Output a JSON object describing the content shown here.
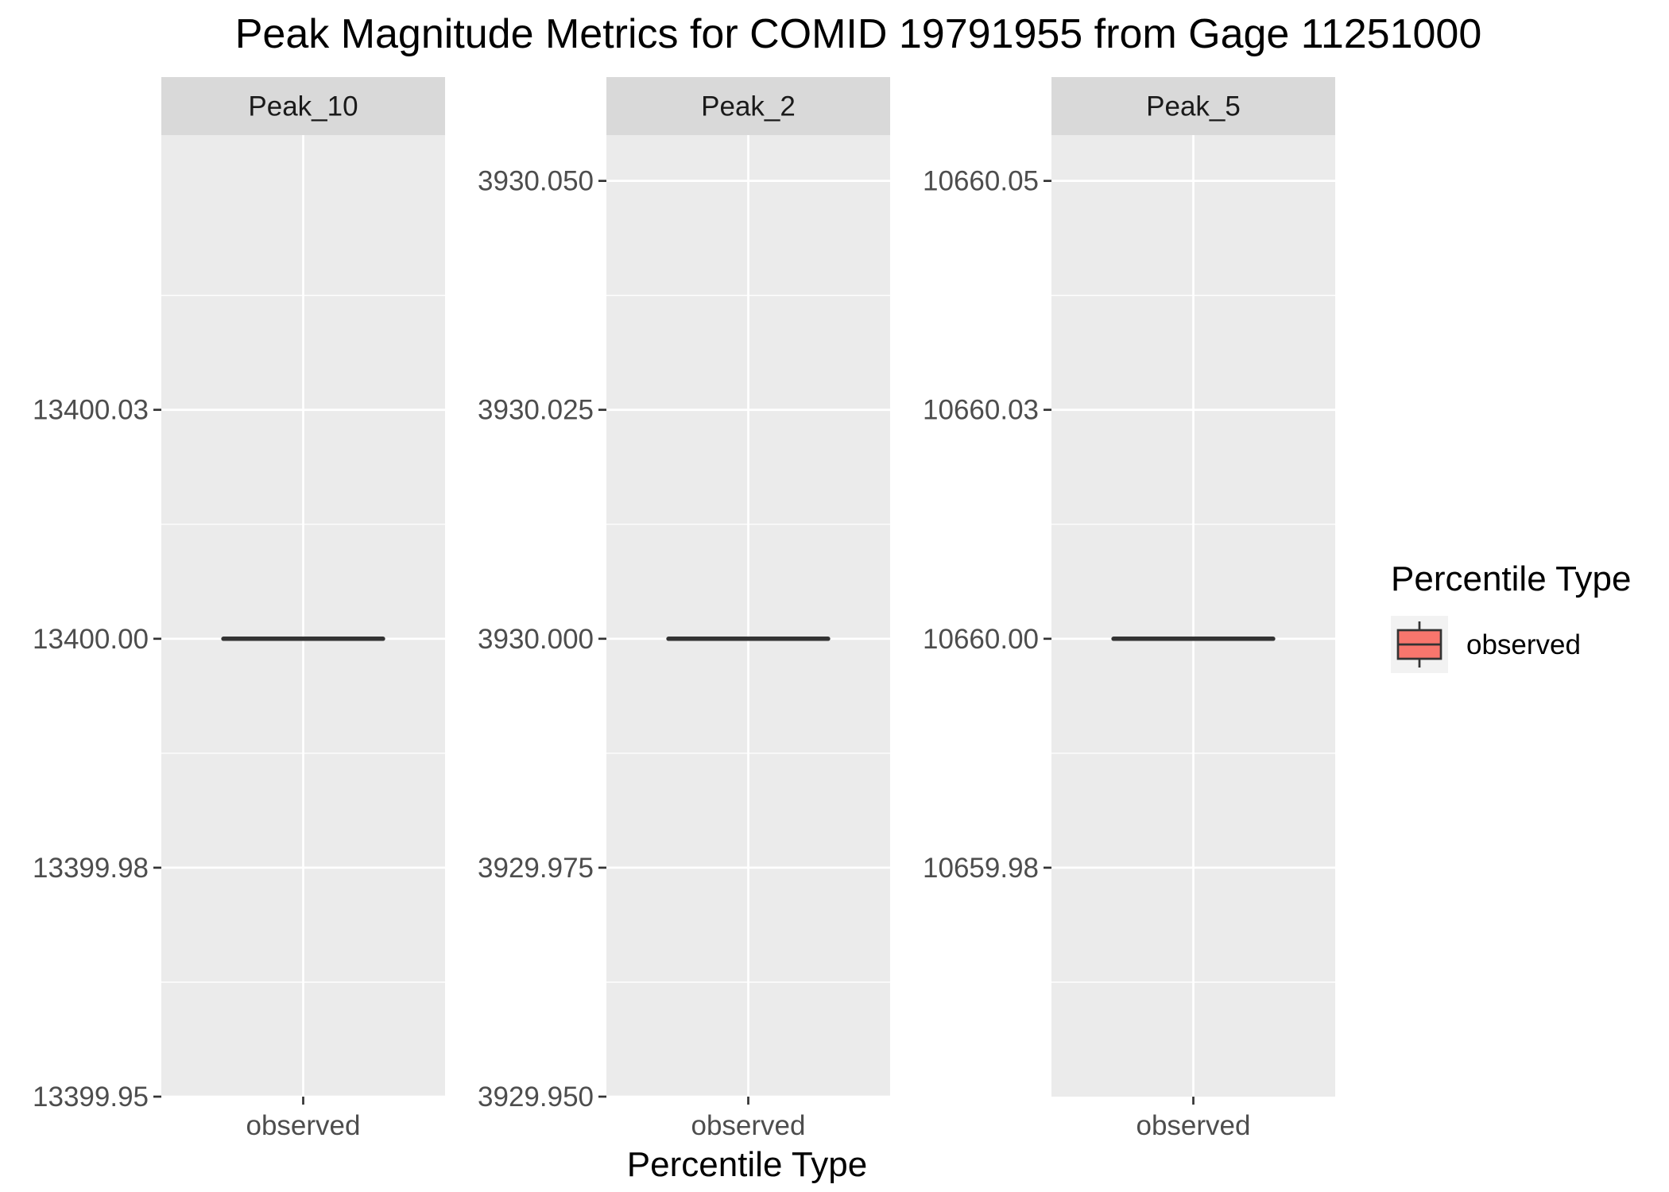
{
  "chart_data": {
    "type": "boxplot",
    "title": "Peak Magnitude Metrics for COMID 19791955 from Gage 11251000",
    "xlabel": "Percentile Type",
    "ylabel": "",
    "grid": true,
    "legend": {
      "title": "Percentile Type",
      "position": "right",
      "entries": [
        {
          "label": "observed",
          "color": "#F8766D"
        }
      ]
    },
    "panels": [
      {
        "label": "Peak_10",
        "categories": [
          "observed"
        ],
        "ylim": [
          13399.95,
          13400.055
        ],
        "yticks": [
          13399.95,
          13399.975,
          13400.0,
          13400.025
        ],
        "ytick_labels": [
          "13399.95",
          "13399.98",
          "13400.00",
          "13400.03"
        ],
        "series": [
          {
            "name": "observed",
            "color": "#F8766D",
            "values": [
              13400.0
            ]
          }
        ]
      },
      {
        "label": "Peak_2",
        "categories": [
          "observed"
        ],
        "ylim": [
          3929.95,
          3930.055
        ],
        "yticks": [
          3929.95,
          3929.975,
          3930.0,
          3930.025,
          3930.05
        ],
        "ytick_labels": [
          "3929.950",
          "3929.975",
          "3930.000",
          "3930.025",
          "3930.050"
        ],
        "series": [
          {
            "name": "observed",
            "color": "#F8766D",
            "values": [
              3930.0
            ]
          }
        ]
      },
      {
        "label": "Peak_5",
        "categories": [
          "observed"
        ],
        "ylim": [
          10659.95,
          10660.055
        ],
        "yticks": [
          10659.975,
          10660.0,
          10660.025,
          10660.05
        ],
        "ytick_labels": [
          "10659.98",
          "10660.00",
          "10660.03",
          "10660.05"
        ],
        "series": [
          {
            "name": "observed",
            "color": "#F8766D",
            "values": [
              10660.0
            ]
          }
        ]
      }
    ]
  }
}
